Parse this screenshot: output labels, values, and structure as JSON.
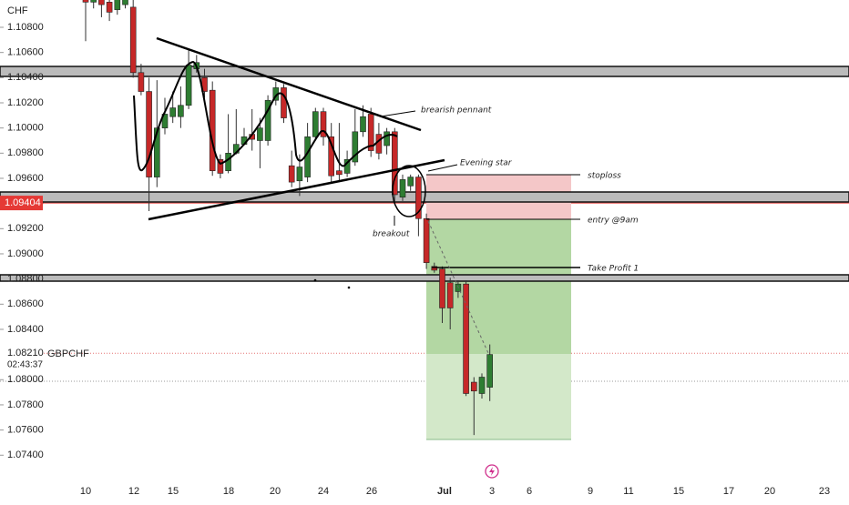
{
  "chart_data": {
    "type": "candlestick",
    "currency": "CHF",
    "symbol": "GBPCHF",
    "countdown": "02:43:37",
    "last_price": {
      "value": 1.0821,
      "label": "1.08210"
    },
    "marked_price": {
      "value": 1.09404,
      "label": "1.09404"
    },
    "up_color": "#2e7d32",
    "down_color": "#c62828",
    "ylim": [
      1.07185,
      1.11017
    ],
    "yticks": [
      {
        "value": 1.108,
        "label": "1.10800"
      },
      {
        "value": 1.106,
        "label": "1.10600"
      },
      {
        "value": 1.104,
        "label": "1.10400"
      },
      {
        "value": 1.102,
        "label": "1.10200"
      },
      {
        "value": 1.1,
        "label": "1.10000"
      },
      {
        "value": 1.098,
        "label": "1.09800"
      },
      {
        "value": 1.096,
        "label": "1.09600"
      },
      {
        "value": 1.094,
        "label": "1.09400"
      },
      {
        "value": 1.092,
        "label": "1.09200"
      },
      {
        "value": 1.09,
        "label": "1.09000"
      },
      {
        "value": 1.088,
        "label": "1.08800"
      },
      {
        "value": 1.086,
        "label": "1.08600"
      },
      {
        "value": 1.084,
        "label": "1.08400"
      },
      {
        "value": 1.082,
        "label": "1.08200"
      },
      {
        "value": 1.08,
        "label": "1.08000"
      },
      {
        "value": 1.078,
        "label": "1.07800"
      },
      {
        "value": 1.076,
        "label": "1.07600"
      },
      {
        "value": 1.074,
        "label": "1.07400"
      }
    ],
    "x_labels": [
      "10",
      "12",
      "15",
      "18",
      "20",
      "24",
      "26",
      "Jul",
      "3",
      "6",
      "9",
      "11",
      "15",
      "17",
      "20",
      "23"
    ],
    "open": [
      1.1102,
      1.11,
      1.1102,
      1.11,
      1.1094,
      1.1098,
      1.1096,
      1.1044,
      1.1029,
      1.0961,
      1.1,
      1.1009,
      1.1009,
      1.1018,
      1.1047,
      1.104,
      1.103,
      1.0975,
      1.0966,
      1.098,
      1.0987,
      1.0995,
      1.099,
      1.099,
      1.1022,
      1.1032,
      1.097,
      1.0958,
      1.0961,
      1.0993,
      1.1013,
      1.0993,
      1.0966,
      1.0964,
      1.0973,
      1.0997,
      1.1011,
      1.0995,
      1.0986,
      1.0997,
      1.0945,
      1.0954,
      1.0961,
      1.0928,
      1.089,
      1.0888,
      1.0877,
      1.087,
      1.0876,
      1.0798,
      1.0789,
      1.0794
    ],
    "high": [
      1.1103,
      1.1103,
      1.1103,
      1.1103,
      1.1103,
      1.1103,
      1.1102,
      1.1051,
      1.104,
      1.1038,
      1.1024,
      1.1029,
      1.1033,
      1.1062,
      1.1058,
      1.1047,
      1.1037,
      1.0979,
      1.1011,
      1.1015,
      1.1,
      1.1015,
      1.1008,
      1.1026,
      1.1037,
      1.1035,
      1.0982,
      1.0979,
      1.1004,
      1.1016,
      1.1016,
      1.1004,
      1.1004,
      1.0982,
      1.1015,
      1.1018,
      1.1016,
      1.1004,
      1.1,
      1.1,
      1.0963,
      1.0963,
      1.0963,
      1.0932,
      1.0893,
      1.089,
      1.0881,
      1.0879,
      1.0879,
      1.0802,
      1.0805,
      1.0828
    ],
    "low": [
      1.1069,
      1.1095,
      1.1088,
      1.1085,
      1.109,
      1.1095,
      1.104,
      1.1026,
      1.0934,
      1.0953,
      1.0995,
      1.1004,
      1.1,
      1.1015,
      1.1044,
      1.1024,
      1.0962,
      1.096,
      1.0964,
      1.0979,
      1.0986,
      1.0982,
      1.0968,
      1.0986,
      1.1018,
      1.1004,
      1.0953,
      1.0946,
      1.0957,
      1.099,
      1.0986,
      1.0957,
      1.0957,
      1.0961,
      1.097,
      1.0993,
      1.0977,
      1.0975,
      1.0979,
      1.0939,
      1.0942,
      1.095,
      1.0914,
      1.0888,
      1.0885,
      1.0845,
      1.084,
      1.0865,
      1.0787,
      1.0756,
      1.0785,
      1.0783
    ],
    "close": [
      1.11,
      1.1102,
      1.1098,
      1.1092,
      1.1102,
      1.1102,
      1.1044,
      1.1029,
      1.0961,
      1.1,
      1.1011,
      1.1016,
      1.1018,
      1.105,
      1.1052,
      1.1029,
      1.0966,
      1.0964,
      1.098,
      1.0987,
      1.0993,
      1.0991,
      1.1,
      1.1022,
      1.1032,
      1.1008,
      1.0957,
      1.0969,
      1.0993,
      1.1013,
      1.0993,
      1.0962,
      1.0963,
      1.0975,
      1.0997,
      1.1009,
      1.0982,
      1.098,
      1.0997,
      1.0947,
      1.0959,
      1.0961,
      1.0928,
      1.0893,
      1.0887,
      1.0857,
      1.0857,
      1.0876,
      1.0789,
      1.0791,
      1.0802,
      1.082
    ],
    "annotations": {
      "pennant": "brearish pennant",
      "star": "Evening star",
      "breakout": "breakout",
      "stoploss": "stoploss",
      "entry": "entry @9am",
      "tp": "Take Profit 1"
    }
  }
}
